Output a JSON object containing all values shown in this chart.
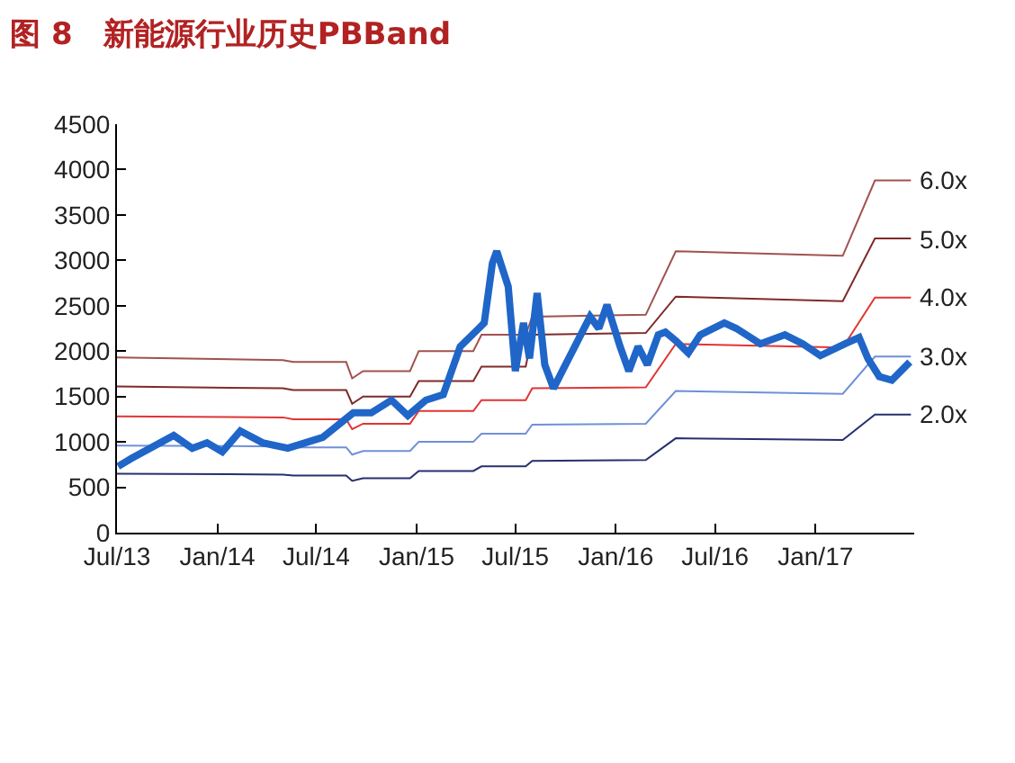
{
  "chart_data": {
    "type": "line",
    "title": "图 8　新能源行业历史PBBand",
    "xlim": [
      "2013-07-01",
      "2017-07-01"
    ],
    "xticks": [
      {
        "value": "2013-07-01",
        "label": "Jul/13"
      },
      {
        "value": "2014-01-01",
        "label": "Jan/14"
      },
      {
        "value": "2014-07-01",
        "label": "Jul/14"
      },
      {
        "value": "2015-01-01",
        "label": "Jan/15"
      },
      {
        "value": "2015-07-01",
        "label": "Jul/15"
      },
      {
        "value": "2016-01-01",
        "label": "Jan/16"
      },
      {
        "value": "2016-07-01",
        "label": "Jul/16"
      },
      {
        "value": "2017-01-01",
        "label": "Jan/17"
      }
    ],
    "ylim": [
      0,
      4500
    ],
    "yticks": [
      0,
      500,
      1000,
      1500,
      2000,
      2500,
      3000,
      3500,
      4000,
      4500
    ],
    "grid": false,
    "legend": false,
    "series": [
      {
        "name": "6.0x",
        "color": "#a0524f",
        "x": [
          "2013-07-01",
          "2014-05-01",
          "2014-05-20",
          "2014-08-25",
          "2014-09-05",
          "2014-09-25",
          "2014-12-20",
          "2015-01-05",
          "2015-04-15",
          "2015-04-30",
          "2015-07-20",
          "2015-08-01",
          "2016-02-25",
          "2016-04-20",
          "2017-02-20",
          "2017-04-20",
          "2017-06-25"
        ],
        "values": [
          1930,
          1900,
          1880,
          1880,
          1700,
          1780,
          1780,
          2000,
          2000,
          2180,
          2180,
          2380,
          2400,
          3100,
          3050,
          3880,
          3880
        ]
      },
      {
        "name": "5.0x",
        "color": "#7f2a2a",
        "x": [
          "2013-07-01",
          "2014-05-01",
          "2014-05-20",
          "2014-08-25",
          "2014-09-05",
          "2014-09-25",
          "2014-12-20",
          "2015-01-05",
          "2015-04-15",
          "2015-04-30",
          "2015-07-20",
          "2015-08-01",
          "2016-02-25",
          "2016-04-20",
          "2017-02-20",
          "2017-04-20",
          "2017-06-25"
        ],
        "values": [
          1610,
          1590,
          1570,
          1570,
          1420,
          1500,
          1500,
          1670,
          1670,
          1830,
          1830,
          2180,
          2200,
          2600,
          2550,
          3240,
          3240
        ]
      },
      {
        "name": "4.0x",
        "color": "#e03535",
        "x": [
          "2013-07-01",
          "2014-05-01",
          "2014-05-20",
          "2014-08-25",
          "2014-09-05",
          "2014-09-25",
          "2014-12-20",
          "2015-01-05",
          "2015-04-15",
          "2015-04-30",
          "2015-07-20",
          "2015-08-01",
          "2016-02-25",
          "2016-04-20",
          "2017-02-20",
          "2017-04-20",
          "2017-06-25"
        ],
        "values": [
          1280,
          1270,
          1250,
          1250,
          1140,
          1200,
          1200,
          1340,
          1340,
          1460,
          1460,
          1590,
          1600,
          2080,
          2040,
          2590,
          2590
        ]
      },
      {
        "name": "3.0x",
        "color": "#7090d8",
        "x": [
          "2013-07-01",
          "2014-05-01",
          "2014-05-20",
          "2014-08-25",
          "2014-09-05",
          "2014-09-25",
          "2014-12-20",
          "2015-01-05",
          "2015-04-15",
          "2015-04-30",
          "2015-07-20",
          "2015-08-01",
          "2016-02-25",
          "2016-04-20",
          "2017-02-20",
          "2017-04-20",
          "2017-06-25"
        ],
        "values": [
          960,
          950,
          940,
          940,
          860,
          900,
          900,
          1000,
          1000,
          1090,
          1090,
          1190,
          1200,
          1560,
          1530,
          1940,
          1940
        ]
      },
      {
        "name": "2.0x",
        "color": "#26306e",
        "x": [
          "2013-07-01",
          "2014-05-01",
          "2014-05-20",
          "2014-08-25",
          "2014-09-05",
          "2014-09-25",
          "2014-12-20",
          "2015-01-05",
          "2015-04-15",
          "2015-04-30",
          "2015-07-20",
          "2015-08-01",
          "2016-02-25",
          "2016-04-20",
          "2017-02-20",
          "2017-04-20",
          "2017-06-25"
        ],
        "values": [
          650,
          640,
          630,
          630,
          570,
          600,
          600,
          680,
          680,
          730,
          730,
          790,
          800,
          1040,
          1020,
          1300,
          1300
        ]
      },
      {
        "color": "#1f66c8",
        "x": [
          "2013-07-03",
          "2013-07-28",
          "2013-10-13",
          "2013-11-16",
          "2013-12-13",
          "2014-01-10",
          "2014-02-12",
          "2014-03-25",
          "2014-05-10",
          "2014-06-11",
          "2014-07-13",
          "2014-09-07",
          "2014-10-10",
          "2014-11-16",
          "2014-12-16",
          "2015-01-18",
          "2015-02-19",
          "2015-03-22",
          "2015-04-25",
          "2015-05-05",
          "2015-05-20",
          "2015-05-28",
          "2015-06-18",
          "2015-07-01",
          "2015-07-16",
          "2015-07-27",
          "2015-08-10",
          "2015-08-24",
          "2015-09-09",
          "2015-09-25",
          "2015-10-18",
          "2015-11-15",
          "2015-12-01",
          "2015-12-16",
          "2016-01-09",
          "2016-01-25",
          "2016-02-11",
          "2016-02-28",
          "2016-03-19",
          "2016-04-01",
          "2016-04-21",
          "2016-05-13",
          "2016-06-04",
          "2016-07-18",
          "2016-08-09",
          "2016-09-22",
          "2016-11-06",
          "2016-12-09",
          "2017-01-10",
          "2017-02-24",
          "2017-03-22",
          "2017-04-07",
          "2017-04-28",
          "2017-05-21",
          "2017-06-23"
        ],
        "values": [
          730,
          820,
          1070,
          930,
          990,
          890,
          1120,
          990,
          930,
          990,
          1050,
          1320,
          1320,
          1460,
          1290,
          1460,
          1520,
          2050,
          2250,
          2310,
          2970,
          3100,
          2710,
          1780,
          2310,
          1920,
          2640,
          1850,
          1590,
          1780,
          2050,
          2380,
          2250,
          2510,
          2050,
          1780,
          2050,
          1850,
          2180,
          2210,
          2110,
          1980,
          2180,
          2310,
          2250,
          2080,
          2180,
          2080,
          1950,
          2080,
          2150,
          1920,
          1720,
          1680,
          1880
        ]
      }
    ]
  }
}
